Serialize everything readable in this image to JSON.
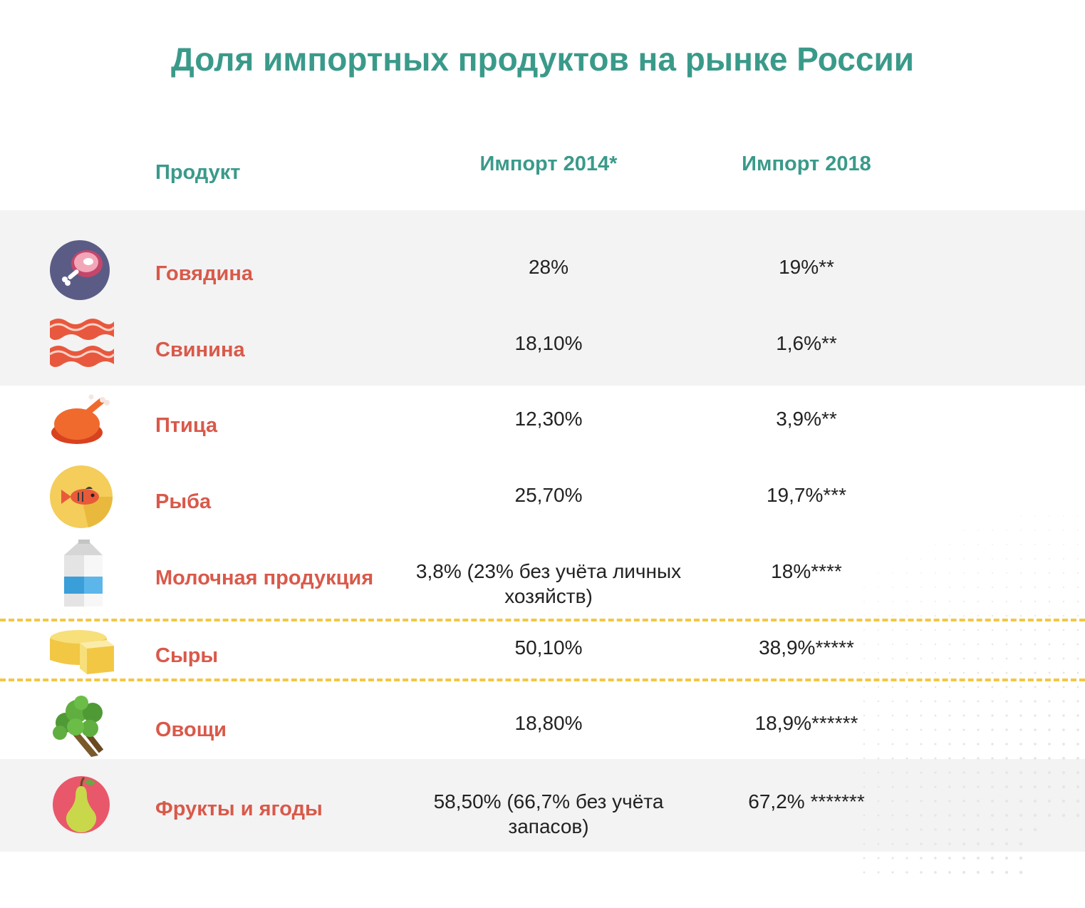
{
  "title": "Доля импортных продуктов на рынке России",
  "chart_data": {
    "type": "table",
    "columns": [
      "Продукт",
      "Импорт 2014*",
      "Импорт 2018"
    ],
    "rows": [
      {
        "product": "Говядина",
        "icon": "ham-icon",
        "import_2014": "28%",
        "import_2018": "19%**"
      },
      {
        "product": "Свинина",
        "icon": "bacon-icon",
        "import_2014": "18,10%",
        "import_2018": "1,6%**"
      },
      {
        "product": "Птица",
        "icon": "roast-chicken-icon",
        "import_2014": "12,30%",
        "import_2018": "3,9%**"
      },
      {
        "product": "Рыба",
        "icon": "fish-icon",
        "import_2014": "25,70%",
        "import_2018": "19,7%***"
      },
      {
        "product": "Молочная продукция",
        "icon": "milk-carton-icon",
        "import_2014": "3,8% (23% без учёта личных хозяйств)",
        "import_2018": "18%****"
      },
      {
        "product": "Сыры",
        "icon": "cheese-icon",
        "import_2014": "50,10%",
        "import_2018": "38,9%*****"
      },
      {
        "product": "Овощи",
        "icon": "broccoli-icon",
        "import_2014": "18,80%",
        "import_2018": "18,9%******"
      },
      {
        "product": "Фрукты и ягоды",
        "icon": "pear-icon",
        "import_2014": "58,50% (66,7% без учёта запасов)",
        "import_2018": "67,2% *******"
      }
    ]
  },
  "colors": {
    "title": "#3a9a8a",
    "product_name": "#d9594a",
    "band": "#f3f3f3",
    "divider": "#f2c744"
  }
}
